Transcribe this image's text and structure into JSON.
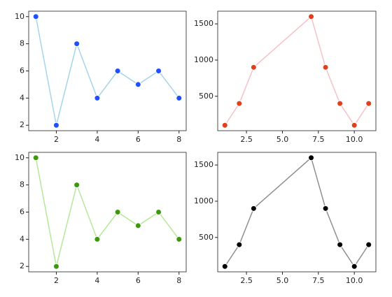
{
  "chart_data": [
    {
      "type": "line",
      "x": [
        1,
        2,
        3,
        4,
        5,
        6,
        7,
        8
      ],
      "series": [
        {
          "color": "#a6d4ec",
          "marker_color": "#1f4fff",
          "values": [
            10,
            2,
            8,
            4,
            6,
            5,
            6,
            4
          ]
        }
      ],
      "xlim": [
        0.65,
        8.35
      ],
      "ylim": [
        1.6,
        10.4
      ],
      "xticks": [
        2,
        4,
        6,
        8
      ],
      "yticks": [
        2,
        4,
        6,
        8,
        10
      ]
    },
    {
      "type": "line",
      "x": [
        1,
        2,
        3,
        7,
        8,
        9,
        10,
        11
      ],
      "series": [
        {
          "color": "#f4c2c8",
          "marker_color": "#e0401c",
          "values": [
            100,
            400,
            900,
            1600,
            900,
            400,
            100,
            400
          ]
        }
      ],
      "xlim": [
        0.5,
        11.5
      ],
      "ylim": [
        25,
        1675
      ],
      "xticks": [
        2.5,
        {
          "value": 5,
          "label": "5.0"
        },
        7.5,
        {
          "value": 10,
          "label": "10.0"
        }
      ],
      "yticks": [
        500,
        1000,
        1500
      ]
    },
    {
      "type": "line",
      "x": [
        1,
        2,
        3,
        4,
        5,
        6,
        7,
        8
      ],
      "series": [
        {
          "color": "#b5e89a",
          "marker_color": "#3c9a0a",
          "values": [
            10,
            2,
            8,
            4,
            6,
            5,
            6,
            4
          ]
        }
      ],
      "xlim": [
        0.65,
        8.35
      ],
      "ylim": [
        1.6,
        10.4
      ],
      "xticks": [
        2,
        4,
        6,
        8
      ],
      "yticks": [
        2,
        4,
        6,
        8,
        10
      ]
    },
    {
      "type": "line",
      "x": [
        1,
        2,
        3,
        7,
        8,
        9,
        10,
        11
      ],
      "series": [
        {
          "color": "#909090",
          "marker_color": "#000000",
          "values": [
            100,
            400,
            900,
            1600,
            900,
            400,
            100,
            400
          ]
        }
      ],
      "xlim": [
        0.5,
        11.5
      ],
      "ylim": [
        25,
        1675
      ],
      "xticks": [
        2.5,
        {
          "value": 5,
          "label": "5.0"
        },
        7.5,
        {
          "value": 10,
          "label": "10.0"
        }
      ],
      "yticks": [
        500,
        1000,
        1500
      ]
    }
  ]
}
